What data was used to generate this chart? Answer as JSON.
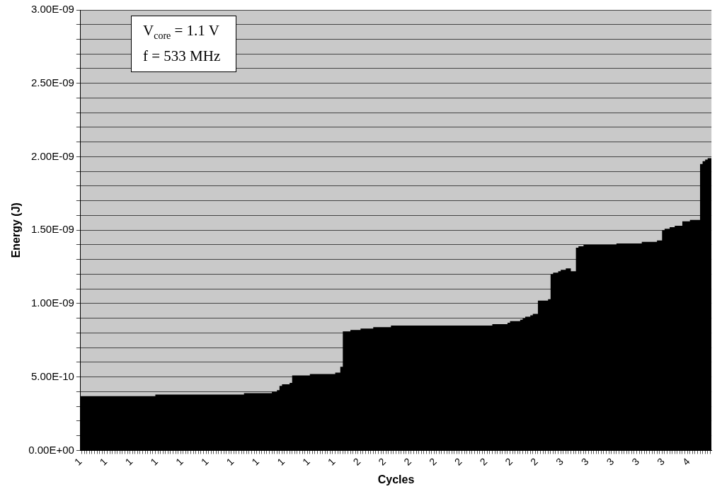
{
  "chart_data": {
    "type": "area",
    "xlabel": "Cycles",
    "ylabel": "Energy (J)",
    "annotations": [
      "V$_{core}$ = 1.1 V",
      "f = 533 MHz"
    ],
    "color": "#000000",
    "grid": "y",
    "ylim": [
      0,
      3e-09
    ],
    "yticks": [
      {
        "value": 0,
        "label": "0.00E+00"
      },
      {
        "value": 1e-10,
        "label": null
      },
      {
        "value": 2e-10,
        "label": null
      },
      {
        "value": 3e-10,
        "label": null
      },
      {
        "value": 4e-10,
        "label": null
      },
      {
        "value": 5e-10,
        "label": "5.00E-10"
      },
      {
        "value": 6e-10,
        "label": null
      },
      {
        "value": 7e-10,
        "label": null
      },
      {
        "value": 8e-10,
        "label": null
      },
      {
        "value": 9e-10,
        "label": null
      },
      {
        "value": 1e-09,
        "label": "1.00E-09"
      },
      {
        "value": 1.1e-09,
        "label": null
      },
      {
        "value": 1.2e-09,
        "label": null
      },
      {
        "value": 1.3e-09,
        "label": null
      },
      {
        "value": 1.4e-09,
        "label": null
      },
      {
        "value": 1.5e-09,
        "label": "1.50E-09"
      },
      {
        "value": 1.6e-09,
        "label": null
      },
      {
        "value": 1.7e-09,
        "label": null
      },
      {
        "value": 1.8e-09,
        "label": null
      },
      {
        "value": 1.9e-09,
        "label": null
      },
      {
        "value": 2e-09,
        "label": "2.00E-09"
      },
      {
        "value": 2.1e-09,
        "label": null
      },
      {
        "value": 2.2e-09,
        "label": null
      },
      {
        "value": 2.3e-09,
        "label": null
      },
      {
        "value": 2.4e-09,
        "label": null
      },
      {
        "value": 2.5e-09,
        "label": "2.50E-09"
      },
      {
        "value": 2.6e-09,
        "label": null
      },
      {
        "value": 2.7e-09,
        "label": null
      },
      {
        "value": 2.8e-09,
        "label": null
      },
      {
        "value": 2.9e-09,
        "label": null
      },
      {
        "value": 3e-09,
        "label": "3.00E-09"
      }
    ],
    "categories": [
      "1",
      null,
      null,
      null,
      null,
      null,
      null,
      null,
      null,
      null,
      "1",
      null,
      null,
      null,
      null,
      null,
      null,
      null,
      null,
      null,
      "1",
      null,
      null,
      null,
      null,
      null,
      null,
      null,
      null,
      null,
      "1",
      null,
      null,
      null,
      null,
      null,
      null,
      null,
      null,
      null,
      "1",
      null,
      null,
      null,
      null,
      null,
      null,
      null,
      null,
      null,
      "1",
      null,
      null,
      null,
      null,
      null,
      null,
      null,
      null,
      null,
      "1",
      null,
      null,
      null,
      null,
      null,
      null,
      null,
      null,
      null,
      "1",
      null,
      null,
      null,
      null,
      null,
      null,
      null,
      null,
      null,
      "1",
      null,
      null,
      null,
      null,
      null,
      null,
      null,
      null,
      null,
      "1",
      null,
      null,
      null,
      null,
      null,
      null,
      null,
      null,
      null,
      "1",
      null,
      null,
      null,
      null,
      null,
      null,
      null,
      null,
      null,
      "2",
      null,
      null,
      null,
      null,
      null,
      null,
      null,
      null,
      null,
      "2",
      null,
      null,
      null,
      null,
      null,
      null,
      null,
      null,
      null,
      "2",
      null,
      null,
      null,
      null,
      null,
      null,
      null,
      null,
      null,
      "2",
      null,
      null,
      null,
      null,
      null,
      null,
      null,
      null,
      null,
      "2",
      null,
      null,
      null,
      null,
      null,
      null,
      null,
      null,
      null,
      "2",
      null,
      null,
      null,
      null,
      null,
      null,
      null,
      null,
      null,
      "2",
      null,
      null,
      null,
      null,
      null,
      null,
      null,
      null,
      null,
      "2",
      null,
      null,
      null,
      null,
      null,
      null,
      null,
      null,
      null,
      "3",
      null,
      null,
      null,
      null,
      null,
      null,
      null,
      null,
      null,
      "3",
      null,
      null,
      null,
      null,
      null,
      null,
      null,
      null,
      null,
      "3",
      null,
      null,
      null,
      null,
      null,
      null,
      null,
      null,
      null,
      "3",
      null,
      null,
      null,
      null,
      null,
      null,
      null,
      null,
      null,
      "3",
      null,
      null,
      null,
      null,
      null,
      null,
      null,
      null,
      null,
      "4",
      null,
      null,
      null,
      null,
      null,
      null,
      null,
      null,
      null
    ],
    "values": [
      3.7e-10,
      3.7e-10,
      3.7e-10,
      3.7e-10,
      3.7e-10,
      3.7e-10,
      3.7e-10,
      3.7e-10,
      3.7e-10,
      3.7e-10,
      3.7e-10,
      3.7e-10,
      3.7e-10,
      3.7e-10,
      3.7e-10,
      3.7e-10,
      3.7e-10,
      3.7e-10,
      3.7e-10,
      3.7e-10,
      3.7e-10,
      3.7e-10,
      3.7e-10,
      3.7e-10,
      3.7e-10,
      3.7e-10,
      3.7e-10,
      3.7e-10,
      3.7e-10,
      3.7e-10,
      3.8e-10,
      3.8e-10,
      3.8e-10,
      3.8e-10,
      3.8e-10,
      3.8e-10,
      3.8e-10,
      3.8e-10,
      3.8e-10,
      3.8e-10,
      3.8e-10,
      3.8e-10,
      3.8e-10,
      3.8e-10,
      3.8e-10,
      3.8e-10,
      3.8e-10,
      3.8e-10,
      3.8e-10,
      3.8e-10,
      3.8e-10,
      3.8e-10,
      3.8e-10,
      3.8e-10,
      3.8e-10,
      3.8e-10,
      3.8e-10,
      3.8e-10,
      3.8e-10,
      3.8e-10,
      3.8e-10,
      3.8e-10,
      3.8e-10,
      3.8e-10,
      3.8e-10,
      3.9e-10,
      3.9e-10,
      3.9e-10,
      3.9e-10,
      3.9e-10,
      3.9e-10,
      3.9e-10,
      3.9e-10,
      3.9e-10,
      3.9e-10,
      3.9e-10,
      4e-10,
      4e-10,
      4.1e-10,
      4.4e-10,
      4.5e-10,
      4.5e-10,
      4.5e-10,
      4.6e-10,
      5.1e-10,
      5.1e-10,
      5.1e-10,
      5.1e-10,
      5.1e-10,
      5.1e-10,
      5.1e-10,
      5.2e-10,
      5.2e-10,
      5.2e-10,
      5.2e-10,
      5.2e-10,
      5.2e-10,
      5.2e-10,
      5.2e-10,
      5.2e-10,
      5.2e-10,
      5.3e-10,
      5.3e-10,
      5.7e-10,
      8.1e-10,
      8.1e-10,
      8.1e-10,
      8.2e-10,
      8.2e-10,
      8.2e-10,
      8.2e-10,
      8.3e-10,
      8.3e-10,
      8.3e-10,
      8.3e-10,
      8.3e-10,
      8.4e-10,
      8.4e-10,
      8.4e-10,
      8.4e-10,
      8.4e-10,
      8.4e-10,
      8.4e-10,
      8.5e-10,
      8.5e-10,
      8.5e-10,
      8.5e-10,
      8.5e-10,
      8.5e-10,
      8.5e-10,
      8.5e-10,
      8.5e-10,
      8.5e-10,
      8.5e-10,
      8.5e-10,
      8.5e-10,
      8.5e-10,
      8.5e-10,
      8.5e-10,
      8.5e-10,
      8.5e-10,
      8.5e-10,
      8.5e-10,
      8.5e-10,
      8.5e-10,
      8.5e-10,
      8.5e-10,
      8.5e-10,
      8.5e-10,
      8.5e-10,
      8.5e-10,
      8.5e-10,
      8.5e-10,
      8.5e-10,
      8.5e-10,
      8.5e-10,
      8.5e-10,
      8.5e-10,
      8.5e-10,
      8.5e-10,
      8.5e-10,
      8.5e-10,
      8.5e-10,
      8.6e-10,
      8.6e-10,
      8.6e-10,
      8.6e-10,
      8.6e-10,
      8.6e-10,
      8.7e-10,
      8.8e-10,
      8.8e-10,
      8.8e-10,
      8.8e-10,
      8.9e-10,
      9e-10,
      9.1e-10,
      9.1e-10,
      9.2e-10,
      9.3e-10,
      9.3e-10,
      1.02e-09,
      1.02e-09,
      1.02e-09,
      1.02e-09,
      1.03e-09,
      1.2e-09,
      1.21e-09,
      1.21e-09,
      1.22e-09,
      1.23e-09,
      1.23e-09,
      1.24e-09,
      1.24e-09,
      1.22e-09,
      1.22e-09,
      1.38e-09,
      1.39e-09,
      1.39e-09,
      1.4e-09,
      1.4e-09,
      1.4e-09,
      1.4e-09,
      1.4e-09,
      1.4e-09,
      1.4e-09,
      1.4e-09,
      1.4e-09,
      1.4e-09,
      1.4e-09,
      1.4e-09,
      1.4e-09,
      1.41e-09,
      1.41e-09,
      1.41e-09,
      1.41e-09,
      1.41e-09,
      1.41e-09,
      1.41e-09,
      1.41e-09,
      1.41e-09,
      1.41e-09,
      1.42e-09,
      1.42e-09,
      1.42e-09,
      1.42e-09,
      1.42e-09,
      1.42e-09,
      1.43e-09,
      1.43e-09,
      1.5e-09,
      1.51e-09,
      1.51e-09,
      1.52e-09,
      1.52e-09,
      1.53e-09,
      1.53e-09,
      1.53e-09,
      1.56e-09,
      1.56e-09,
      1.56e-09,
      1.57e-09,
      1.57e-09,
      1.57e-09,
      1.57e-09,
      1.95e-09,
      1.97e-09,
      1.98e-09,
      1.99e-09,
      1.99e-09
    ]
  }
}
